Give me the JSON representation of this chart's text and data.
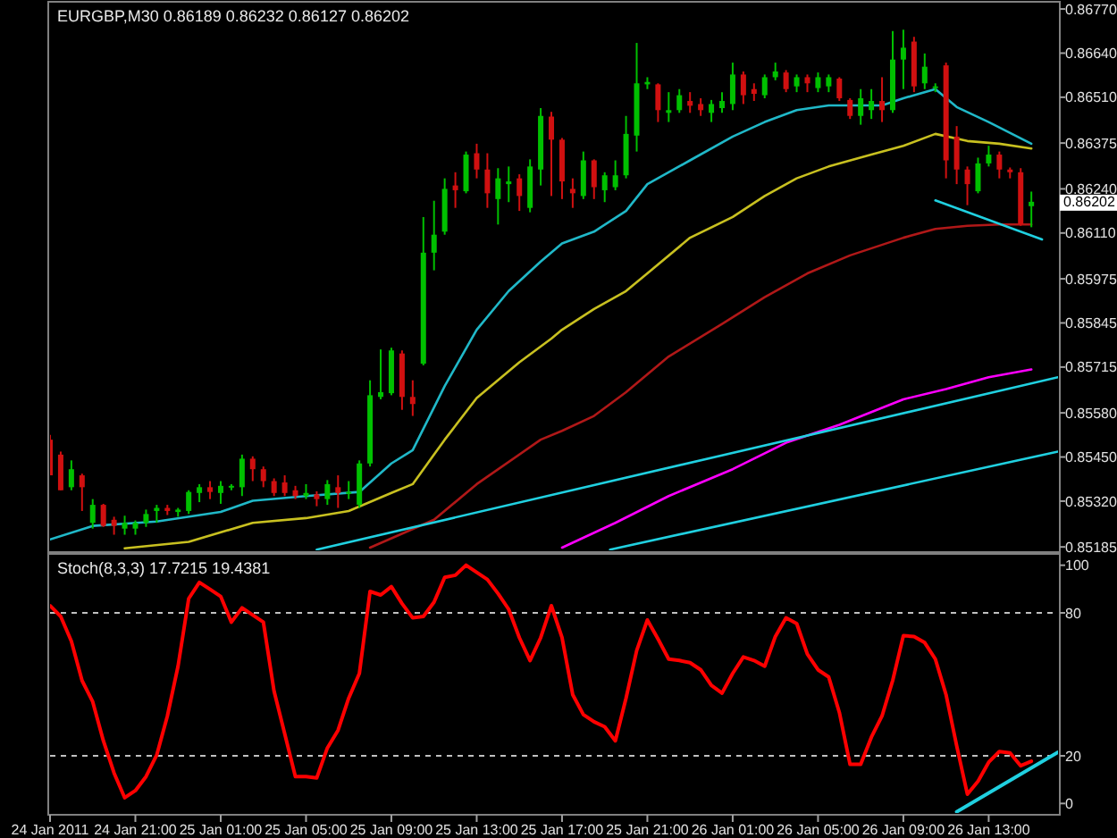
{
  "chart_data": [
    {
      "type": "candlestick",
      "title": "EURGBP,M30  0.86189 0.86232 0.86127 0.86202",
      "tick_labels": "y",
      "x": [
        "2011-01-24T17:00",
        "2011-01-24T17:30",
        "2011-01-24T18:00",
        "2011-01-24T18:30",
        "2011-01-24T19:00",
        "2011-01-24T19:30",
        "2011-01-24T20:00",
        "2011-01-24T20:30",
        "2011-01-24T21:00",
        "2011-01-24T21:30",
        "2011-01-24T22:00",
        "2011-01-24T22:30",
        "2011-01-24T23:00",
        "2011-01-24T23:30",
        "2011-01-25T00:00",
        "2011-01-25T00:30",
        "2011-01-25T01:00",
        "2011-01-25T01:30",
        "2011-01-25T02:00",
        "2011-01-25T02:30",
        "2011-01-25T03:00",
        "2011-01-25T03:30",
        "2011-01-25T04:00",
        "2011-01-25T04:30",
        "2011-01-25T05:00",
        "2011-01-25T05:30",
        "2011-01-25T06:00",
        "2011-01-25T06:30",
        "2011-01-25T07:00",
        "2011-01-25T07:30",
        "2011-01-25T08:00",
        "2011-01-25T08:30",
        "2011-01-25T09:00",
        "2011-01-25T09:30",
        "2011-01-25T10:00",
        "2011-01-25T10:30",
        "2011-01-25T11:00",
        "2011-01-25T11:30",
        "2011-01-25T12:00",
        "2011-01-25T12:30",
        "2011-01-25T13:00",
        "2011-01-25T13:30",
        "2011-01-25T14:00",
        "2011-01-25T14:30",
        "2011-01-25T15:00",
        "2011-01-25T15:30",
        "2011-01-25T16:00",
        "2011-01-25T16:30",
        "2011-01-25T17:00",
        "2011-01-25T17:30",
        "2011-01-25T18:00",
        "2011-01-25T18:30",
        "2011-01-25T19:00",
        "2011-01-25T19:30",
        "2011-01-25T20:00",
        "2011-01-25T20:30",
        "2011-01-25T21:00",
        "2011-01-25T21:30",
        "2011-01-25T22:00",
        "2011-01-25T22:30",
        "2011-01-25T23:00",
        "2011-01-25T23:30",
        "2011-01-26T00:00",
        "2011-01-26T00:30",
        "2011-01-26T01:00",
        "2011-01-26T01:30",
        "2011-01-26T02:00",
        "2011-01-26T02:30",
        "2011-01-26T03:00",
        "2011-01-26T03:30",
        "2011-01-26T04:00",
        "2011-01-26T04:30",
        "2011-01-26T05:00",
        "2011-01-26T05:30",
        "2011-01-26T06:00",
        "2011-01-26T06:30",
        "2011-01-26T07:00",
        "2011-01-26T07:30",
        "2011-01-26T08:00",
        "2011-01-26T08:30",
        "2011-01-26T09:00",
        "2011-01-26T09:30",
        "2011-01-26T10:00",
        "2011-01-26T10:30",
        "2011-01-26T11:00",
        "2011-01-26T11:30",
        "2011-01-26T12:00",
        "2011-01-26T12:30",
        "2011-01-26T13:00",
        "2011-01-26T13:30",
        "2011-01-26T14:00",
        "2011-01-26T14:30",
        "2011-01-26T15:00"
      ],
      "ohlc": [
        [
          0.85501,
          0.85515,
          0.85396,
          0.85396
        ],
        [
          0.85457,
          0.85466,
          0.85352,
          0.85352
        ],
        [
          0.85361,
          0.8544,
          0.85352,
          0.85414
        ],
        [
          0.85396,
          0.85401,
          0.85291,
          0.85361
        ],
        [
          0.85256,
          0.85326,
          0.85239,
          0.85309
        ],
        [
          0.85309,
          0.85312,
          0.85244,
          0.85247
        ],
        [
          0.85265,
          0.85274,
          0.85221,
          0.85247
        ],
        [
          0.85239,
          0.85277,
          0.85221,
          0.85256
        ],
        [
          0.85239,
          0.85263,
          0.85221,
          0.85256
        ],
        [
          0.85256,
          0.85295,
          0.85244,
          0.85282
        ],
        [
          0.85291,
          0.85309,
          0.85256,
          0.853
        ],
        [
          0.853,
          0.85309,
          0.85279,
          0.85291
        ],
        [
          0.85288,
          0.853,
          0.85274,
          0.85295
        ],
        [
          0.85291,
          0.85352,
          0.85282,
          0.85347
        ],
        [
          0.85344,
          0.8537,
          0.85317,
          0.85361
        ],
        [
          0.85361,
          0.85379,
          0.85326,
          0.85347
        ],
        [
          0.85344,
          0.85379,
          0.85312,
          0.85365
        ],
        [
          0.85361,
          0.8537,
          0.85352,
          0.85365
        ],
        [
          0.85361,
          0.85457,
          0.85335,
          0.85445
        ],
        [
          0.85445,
          0.85452,
          0.85379,
          0.85414
        ],
        [
          0.85414,
          0.85422,
          0.85361,
          0.85379
        ],
        [
          0.85379,
          0.85387,
          0.85335,
          0.85344
        ],
        [
          0.85375,
          0.85396,
          0.85335,
          0.85344
        ],
        [
          0.85352,
          0.85365,
          0.85326,
          0.85335
        ],
        [
          0.85335,
          0.8537,
          0.85326,
          0.85344
        ],
        [
          0.8534,
          0.85349,
          0.85305,
          0.85326
        ],
        [
          0.85326,
          0.85382,
          0.85309,
          0.8537
        ],
        [
          0.85361,
          0.85396,
          0.853,
          0.85344
        ],
        [
          0.85344,
          0.85379,
          0.85326,
          0.85347
        ],
        [
          0.85309,
          0.8544,
          0.853,
          0.85431
        ],
        [
          0.85431,
          0.85676,
          0.85422,
          0.85632
        ],
        [
          0.85627,
          0.85767,
          0.8562,
          0.85641
        ],
        [
          0.85638,
          0.85772,
          0.85632,
          0.85764
        ],
        [
          0.85755,
          0.85764,
          0.85589,
          0.85627
        ],
        [
          0.85627,
          0.85676,
          0.85571,
          0.85606
        ],
        [
          0.85725,
          0.86157,
          0.8572,
          0.86052
        ],
        [
          0.86052,
          0.86205,
          0.86,
          0.86105
        ],
        [
          0.86114,
          0.86271,
          0.86105,
          0.8624
        ],
        [
          0.8625,
          0.86289,
          0.86184,
          0.86236
        ],
        [
          0.86233,
          0.8635,
          0.86227,
          0.86341
        ],
        [
          0.86345,
          0.86373,
          0.86271,
          0.86297
        ],
        [
          0.86297,
          0.86345,
          0.86184,
          0.86227
        ],
        [
          0.8621,
          0.86301,
          0.86135,
          0.86271
        ],
        [
          0.86254,
          0.86306,
          0.86201,
          0.86262
        ],
        [
          0.86271,
          0.86283,
          0.86175,
          0.86219
        ],
        [
          0.86184,
          0.86327,
          0.86171,
          0.86306
        ],
        [
          0.86297,
          0.86478,
          0.8625,
          0.86455
        ],
        [
          0.86453,
          0.86467,
          0.86219,
          0.86385
        ],
        [
          0.86385,
          0.8639,
          0.8621,
          0.86262
        ],
        [
          0.8624,
          0.86271,
          0.86184,
          0.86227
        ],
        [
          0.86219,
          0.8635,
          0.8621,
          0.86324
        ],
        [
          0.86324,
          0.86327,
          0.8621,
          0.86245
        ],
        [
          0.86236,
          0.86289,
          0.86201,
          0.8628
        ],
        [
          0.86245,
          0.86324,
          0.86236,
          0.8628
        ],
        [
          0.8628,
          0.86455,
          0.86271,
          0.86402
        ],
        [
          0.86397,
          0.8667,
          0.8635,
          0.86551
        ],
        [
          0.86548,
          0.86569,
          0.86534,
          0.86555
        ],
        [
          0.86548,
          0.86551,
          0.86437,
          0.86472
        ],
        [
          0.86464,
          0.86525,
          0.86437,
          0.86472
        ],
        [
          0.86472,
          0.86534,
          0.86464,
          0.86516
        ],
        [
          0.86499,
          0.86525,
          0.86464,
          0.86485
        ],
        [
          0.8649,
          0.86507,
          0.86455,
          0.86472
        ],
        [
          0.86464,
          0.86502,
          0.86437,
          0.8649
        ],
        [
          0.86478,
          0.86525,
          0.86464,
          0.86499
        ],
        [
          0.8649,
          0.86612,
          0.86472,
          0.86577
        ],
        [
          0.86577,
          0.86586,
          0.8649,
          0.86516
        ],
        [
          0.86534,
          0.86551,
          0.86499,
          0.8652
        ],
        [
          0.86516,
          0.86577,
          0.86507,
          0.86569
        ],
        [
          0.86569,
          0.86612,
          0.8656,
          0.86586
        ],
        [
          0.86583,
          0.8659,
          0.86525,
          0.86534
        ],
        [
          0.86542,
          0.86577,
          0.86525,
          0.86569
        ],
        [
          0.86569,
          0.86577,
          0.86525,
          0.86551
        ],
        [
          0.86537,
          0.86583,
          0.86525,
          0.86569
        ],
        [
          0.86542,
          0.86577,
          0.86525,
          0.86569
        ],
        [
          0.86565,
          0.86569,
          0.86499,
          0.86507
        ],
        [
          0.86502,
          0.86507,
          0.86446,
          0.86455
        ],
        [
          0.86455,
          0.86534,
          0.86429,
          0.86507
        ],
        [
          0.86472,
          0.86534,
          0.86446,
          0.86499
        ],
        [
          0.86499,
          0.86569,
          0.86437,
          0.86472
        ],
        [
          0.86472,
          0.86705,
          0.86464,
          0.86621
        ],
        [
          0.86621,
          0.86709,
          0.86534,
          0.86656
        ],
        [
          0.86674,
          0.86688,
          0.86525,
          0.86542
        ],
        [
          0.86551,
          0.86639,
          0.86534,
          0.866
        ],
        [
          0.86537,
          0.86551,
          0.86525,
          0.86542
        ],
        [
          0.86604,
          0.86612,
          0.86271,
          0.86324
        ],
        [
          0.86394,
          0.86425,
          0.86254,
          0.86297
        ],
        [
          0.86297,
          0.86306,
          0.86192,
          0.86254
        ],
        [
          0.86233,
          0.86332,
          0.86227,
          0.86315
        ],
        [
          0.86315,
          0.86367,
          0.86306,
          0.86341
        ],
        [
          0.86341,
          0.8635,
          0.86271,
          0.86297
        ],
        [
          0.86297,
          0.86303,
          0.86271,
          0.86289
        ],
        [
          0.86289,
          0.86301,
          0.86131,
          0.86135
        ],
        [
          0.86189,
          0.86232,
          0.86127,
          0.86202
        ]
      ],
      "series": [
        {
          "type": "line",
          "color": "#20b8c8",
          "x": [
            "2011-01-24T17:00",
            "2011-01-24T19:00",
            "2011-01-24T22:00",
            "2011-01-25T01:00",
            "2011-01-25T02:30",
            "2011-01-25T05:00",
            "2011-01-25T07:30",
            "2011-01-25T09:00",
            "2011-01-25T10:00",
            "2011-01-25T11:30",
            "2011-01-25T13:00",
            "2011-01-25T14:30",
            "2011-01-25T16:00",
            "2011-01-25T17:00",
            "2011-01-25T18:30",
            "2011-01-25T20:00",
            "2011-01-25T21:00",
            "2011-01-25T23:00",
            "2011-01-26T01:00",
            "2011-01-26T02:30",
            "2011-01-26T04:00",
            "2011-01-26T05:30",
            "2011-01-26T08:00",
            "2011-01-26T09:00",
            "2011-01-26T10:30",
            "2011-01-26T11:30",
            "2011-01-26T13:00",
            "2011-01-26T15:00"
          ],
          "values": [
            0.85207,
            0.85247,
            0.8526,
            0.85288,
            0.85321,
            0.85335,
            0.85347,
            0.85431,
            0.8547,
            0.85659,
            0.85825,
            0.85939,
            0.86026,
            0.86079,
            0.86114,
            0.86175,
            0.86254,
            0.86324,
            0.86394,
            0.86437,
            0.86472,
            0.86486,
            0.86486,
            0.86507,
            0.86534,
            0.86481,
            0.86437,
            0.86373
          ]
        },
        {
          "type": "line",
          "color": "#c8c020",
          "x": [
            "2011-01-24T20:30",
            "2011-01-24T23:30",
            "2011-01-25T02:30",
            "2011-01-25T05:00",
            "2011-01-25T07:00",
            "2011-01-25T09:00",
            "2011-01-25T10:00",
            "2011-01-25T11:30",
            "2011-01-25T13:00",
            "2011-01-25T15:00",
            "2011-01-25T16:30",
            "2011-01-25T17:00",
            "2011-01-25T18:30",
            "2011-01-25T20:00",
            "2011-01-25T21:00",
            "2011-01-25T23:00",
            "2011-01-26T01:00",
            "2011-01-26T02:30",
            "2011-01-26T04:00",
            "2011-01-26T05:30",
            "2011-01-26T07:30",
            "2011-01-26T09:00",
            "2011-01-26T10:30",
            "2011-01-26T12:00",
            "2011-01-26T13:30",
            "2011-01-26T15:00"
          ],
          "values": [
            0.85181,
            0.852,
            0.85256,
            0.8527,
            0.85291,
            0.85344,
            0.8537,
            0.85501,
            0.85624,
            0.85729,
            0.85799,
            0.85825,
            0.85886,
            0.85939,
            0.85991,
            0.86096,
            0.86157,
            0.86219,
            0.86271,
            0.86306,
            0.86341,
            0.86367,
            0.86402,
            0.86381,
            0.86373,
            0.86359
          ]
        },
        {
          "type": "line",
          "color": "#b01818",
          "x": [
            "2011-01-25T08:00",
            "2011-01-25T11:00",
            "2011-01-25T13:00",
            "2011-01-25T16:00",
            "2011-01-25T17:00",
            "2011-01-25T18:30",
            "2011-01-25T20:00",
            "2011-01-25T22:00",
            "2011-01-26T00:30",
            "2011-01-26T02:30",
            "2011-01-26T04:30",
            "2011-01-26T06:30",
            "2011-01-26T09:00",
            "2011-01-26T10:30",
            "2011-01-26T12:00",
            "2011-01-26T13:30",
            "2011-01-26T15:00"
          ],
          "values": [
            0.85183,
            0.85265,
            0.8537,
            0.85501,
            0.85527,
            0.85571,
            0.85641,
            0.85746,
            0.85842,
            0.85921,
            0.85991,
            0.86044,
            0.86096,
            0.86122,
            0.86131,
            0.86135,
            0.86135
          ]
        },
        {
          "type": "line",
          "color": "#ff00ff",
          "x": [
            "2011-01-25T17:00",
            "2011-01-25T19:30",
            "2011-01-25T22:00",
            "2011-01-26T01:00",
            "2011-01-26T03:30",
            "2011-01-26T06:00",
            "2011-01-26T09:00",
            "2011-01-26T11:00",
            "2011-01-26T13:00",
            "2011-01-26T15:00"
          ],
          "values": [
            0.85183,
            0.85256,
            0.85335,
            0.85414,
            0.85492,
            0.85545,
            0.8562,
            0.8565,
            0.85685,
            0.85708
          ]
        },
        {
          "type": "line",
          "color": "#20d0e0",
          "x": [
            "2011-01-25T05:30",
            "2011-01-26T16:15"
          ],
          "values": [
            0.85177,
            0.85685
          ]
        },
        {
          "type": "line",
          "color": "#20d0e0",
          "x": [
            "2011-01-25T19:15",
            "2011-01-26T16:15"
          ],
          "values": [
            0.85177,
            0.85466
          ]
        },
        {
          "type": "line",
          "color": "#20d0e0",
          "x": [
            "2011-01-26T10:30",
            "2011-01-26T15:30"
          ],
          "values": [
            0.86206,
            0.86091
          ]
        }
      ],
      "xlim": [
        "2011-01-24T17:00",
        "2011-01-26T16:15"
      ],
      "ylim": [
        0.85175,
        0.86786
      ],
      "yticks": [
        {
          "value": 0.8677,
          "label": "0.86770"
        },
        {
          "value": 0.8664,
          "label": "0.86640"
        },
        {
          "value": 0.8651,
          "label": "0.86510"
        },
        0.86375,
        {
          "value": 0.8624,
          "label": "0.86240"
        },
        {
          "value": 0.8611,
          "label": "0.86110"
        },
        0.85975,
        0.85845,
        0.85715,
        {
          "value": 0.8558,
          "label": "0.85580"
        },
        {
          "value": 0.8545,
          "label": "0.85450"
        },
        {
          "value": 0.8532,
          "label": "0.85320"
        },
        0.85185
      ],
      "annotations": [
        "0.86202"
      ]
    },
    {
      "type": "line",
      "title": "Stoch(8,3,3) 17.7215 19.4381",
      "x": [
        "2011-01-24T17:00",
        "2011-01-24T17:30",
        "2011-01-24T18:00",
        "2011-01-24T18:30",
        "2011-01-24T19:00",
        "2011-01-24T19:30",
        "2011-01-24T20:00",
        "2011-01-24T20:30",
        "2011-01-24T21:00",
        "2011-01-24T21:30",
        "2011-01-24T22:00",
        "2011-01-24T22:30",
        "2011-01-24T23:00",
        "2011-01-24T23:30",
        "2011-01-25T00:00",
        "2011-01-25T00:30",
        "2011-01-25T01:00",
        "2011-01-25T01:30",
        "2011-01-25T02:00",
        "2011-01-25T02:30",
        "2011-01-25T03:00",
        "2011-01-25T03:30",
        "2011-01-25T04:00",
        "2011-01-25T04:30",
        "2011-01-25T05:00",
        "2011-01-25T05:30",
        "2011-01-25T06:00",
        "2011-01-25T06:30",
        "2011-01-25T07:00",
        "2011-01-25T07:30",
        "2011-01-25T08:00",
        "2011-01-25T08:30",
        "2011-01-25T09:00",
        "2011-01-25T09:30",
        "2011-01-25T10:00",
        "2011-01-25T10:30",
        "2011-01-25T11:00",
        "2011-01-25T11:30",
        "2011-01-25T12:00",
        "2011-01-25T12:30",
        "2011-01-25T13:00",
        "2011-01-25T13:30",
        "2011-01-25T14:00",
        "2011-01-25T14:30",
        "2011-01-25T15:00",
        "2011-01-25T15:30",
        "2011-01-25T16:00",
        "2011-01-25T16:30",
        "2011-01-25T17:00",
        "2011-01-25T17:30",
        "2011-01-25T18:00",
        "2011-01-25T18:30",
        "2011-01-25T19:00",
        "2011-01-25T19:30",
        "2011-01-25T20:00",
        "2011-01-25T20:30",
        "2011-01-25T21:00",
        "2011-01-25T21:30",
        "2011-01-25T22:00",
        "2011-01-25T22:30",
        "2011-01-25T23:00",
        "2011-01-25T23:30",
        "2011-01-26T00:00",
        "2011-01-26T00:30",
        "2011-01-26T01:00",
        "2011-01-26T01:30",
        "2011-01-26T02:00",
        "2011-01-26T02:30",
        "2011-01-26T03:00",
        "2011-01-26T03:30",
        "2011-01-26T04:00",
        "2011-01-26T04:30",
        "2011-01-26T05:00",
        "2011-01-26T05:30",
        "2011-01-26T06:00",
        "2011-01-26T06:30",
        "2011-01-26T07:00",
        "2011-01-26T07:30",
        "2011-01-26T08:00",
        "2011-01-26T08:30",
        "2011-01-26T09:00",
        "2011-01-26T09:30",
        "2011-01-26T10:00",
        "2011-01-26T10:30",
        "2011-01-26T11:00",
        "2011-01-26T11:30",
        "2011-01-26T12:00",
        "2011-01-26T12:30",
        "2011-01-26T13:00",
        "2011-01-26T13:30",
        "2011-01-26T14:00",
        "2011-01-26T14:30",
        "2011-01-26T15:00"
      ],
      "series": [
        {
          "color": "#ff0000",
          "values": [
            83.0,
            78.5,
            68.1,
            51.6,
            42.7,
            26.3,
            12.8,
            2.4,
            5.4,
            11.3,
            20.3,
            36.7,
            57.6,
            86.0,
            92.8,
            89.9,
            86.9,
            76.1,
            82.1,
            79.1,
            76.1,
            47.2,
            29.3,
            11.3,
            11.3,
            10.7,
            23.3,
            30.7,
            44.2,
            54.6,
            89.0,
            87.5,
            91.0,
            83.9,
            77.9,
            78.5,
            84.5,
            94.9,
            95.8,
            100.0,
            97.0,
            94.0,
            88.1,
            81.5,
            69.6,
            60.0,
            69.6,
            83.0,
            69.6,
            45.7,
            37.3,
            34.3,
            32.2,
            26.3,
            44.2,
            64.2,
            77.0,
            69.0,
            60.6,
            60.0,
            59.1,
            56.1,
            49.6,
            46.3,
            54.6,
            61.5,
            60.0,
            57.6,
            70.1,
            77.9,
            75.5,
            62.7,
            56.1,
            53.1,
            38.2,
            16.4,
            16.4,
            27.8,
            36.7,
            51.6,
            70.4,
            70.1,
            67.5,
            60.6,
            45.7,
            24.2,
            3.9,
            9.3,
            17.3,
            21.8,
            21.2,
            15.8,
            17.7
          ]
        },
        {
          "color": "#20d0e0",
          "x": [
            "2011-01-26T11:30",
            "2011-01-26T16:15"
          ],
          "values": [
            -3.5,
            21.5
          ]
        }
      ],
      "xlim": [
        "2011-01-24T17:00",
        "2011-01-26T16:15"
      ],
      "ylim": [
        -4,
        104
      ],
      "yticks": [
        0,
        20,
        80,
        100
      ],
      "xticks": [
        {
          "value": "2011-01-24T17:00",
          "label": "24 Jan 2011"
        },
        {
          "value": "2011-01-24T21:00",
          "label": "24 Jan 21:00"
        },
        {
          "value": "2011-01-25T01:00",
          "label": "25 Jan 01:00"
        },
        {
          "value": "2011-01-25T05:00",
          "label": "25 Jan 05:00"
        },
        {
          "value": "2011-01-25T09:00",
          "label": "25 Jan 09:00"
        },
        {
          "value": "2011-01-25T13:00",
          "label": "25 Jan 13:00"
        },
        {
          "value": "2011-01-25T17:00",
          "label": "25 Jan 17:00"
        },
        {
          "value": "2011-01-25T21:00",
          "label": "25 Jan 21:00"
        },
        {
          "value": "2011-01-26T01:00",
          "label": "26 Jan 01:00"
        },
        {
          "value": "2011-01-26T05:00",
          "label": "26 Jan 05:00"
        },
        {
          "value": "2011-01-26T09:00",
          "label": "26 Jan 09:00"
        },
        {
          "value": "2011-01-26T13:00",
          "label": "26 Jan 13:00"
        }
      ],
      "ref_lines": [
        {
          "axis": "y",
          "value": 80,
          "color": "#c0c0c0",
          "line_style": "dashed"
        },
        {
          "axis": "y",
          "value": 20,
          "color": "#c0c0c0",
          "line_style": "dashed"
        }
      ]
    }
  ]
}
